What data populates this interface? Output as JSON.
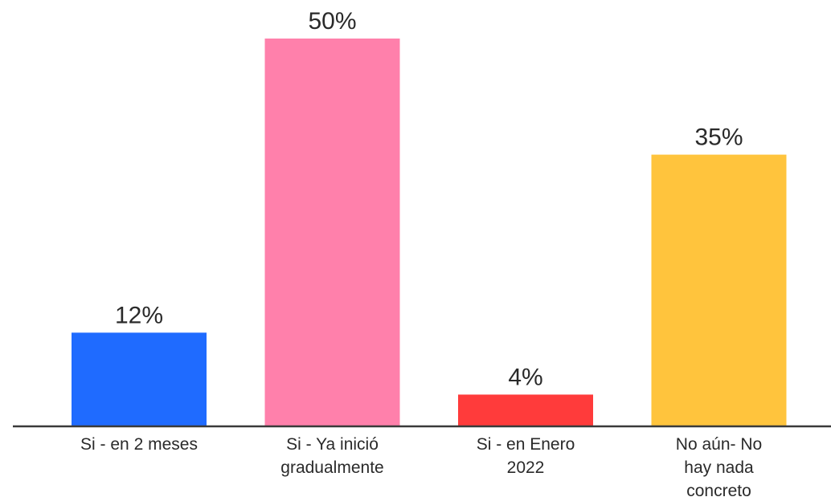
{
  "chart_data": {
    "type": "bar",
    "categories": [
      [
        "Si - en 2 meses"
      ],
      [
        "Si - Ya inició",
        "gradualmente"
      ],
      [
        "Si - en Enero",
        "2022"
      ],
      [
        "No aún- No",
        "hay nada",
        "concreto"
      ]
    ],
    "values": [
      12,
      50,
      4,
      35
    ],
    "value_labels": [
      "12%",
      "50%",
      "4%",
      "35%"
    ],
    "colors": [
      "#1F6BFF",
      "#FF80AB",
      "#FF3B3B",
      "#FFC43D"
    ],
    "ylim": [
      0,
      50
    ],
    "grid": false,
    "legend": "none",
    "baseline_color": "#3a3a3a"
  }
}
